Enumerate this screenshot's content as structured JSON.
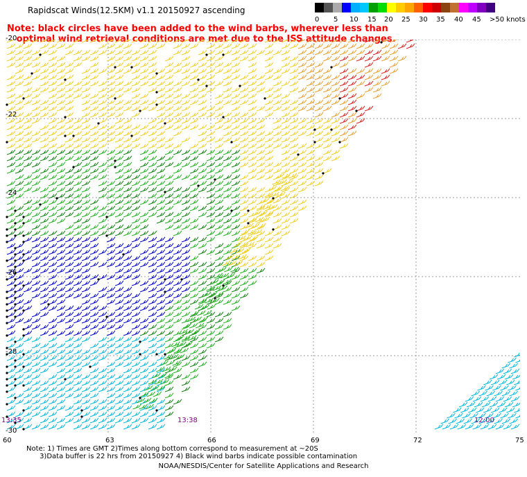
{
  "title": "Rapidscat Winds(12.5KM)  v1.1  20150927  ascending",
  "note_lines": [
    "Note: black circles have been added to the wind barbs, wherever less than",
    "   optimal wind retrieval conditions are met due to the ISS attitude changes."
  ],
  "color_scale": {
    "unit_label": ">50 knots",
    "labels": [
      "0",
      "5",
      "10",
      "15",
      "20",
      "25",
      "30",
      "35",
      "40",
      "45"
    ],
    "colors": [
      "#000000",
      "#555555",
      "#aaaaaa",
      "#0000ff",
      "#00b0ff",
      "#00c8ff",
      "#00a000",
      "#00dd00",
      "#ffff00",
      "#ffcc00",
      "#ffa500",
      "#ff6000",
      "#ff0000",
      "#cc0000",
      "#8b4513",
      "#c07030",
      "#ff00ff",
      "#c000ff",
      "#8000c0",
      "#400080"
    ]
  },
  "axes": {
    "lat_labels": [
      "-20",
      "-22",
      "-24",
      "-26",
      "-28",
      "-30"
    ],
    "lon_labels": [
      "60",
      "63",
      "66",
      "69",
      "72",
      "75"
    ]
  },
  "time_labels": [
    "13:35",
    "13:38",
    "12:00"
  ],
  "footnote_lines": [
    "Note: 1) Times are GMT 2)Times along bottom correspond to measurement at ~20S",
    "      3)Data buffer is 22 hrs from 20150927 4) Black wind barbs indicate possible contamination"
  ],
  "credit": "NOAA/NESDIS/Center for Satellite Applications and Research",
  "swath_colors": {
    "yellow": "#f0d020",
    "orange": "#e8a030",
    "red": "#dd2020",
    "green_light": "#20b020",
    "green_dark": "#108010",
    "blue": "#0000cc",
    "cyan": "#00b8e0"
  }
}
